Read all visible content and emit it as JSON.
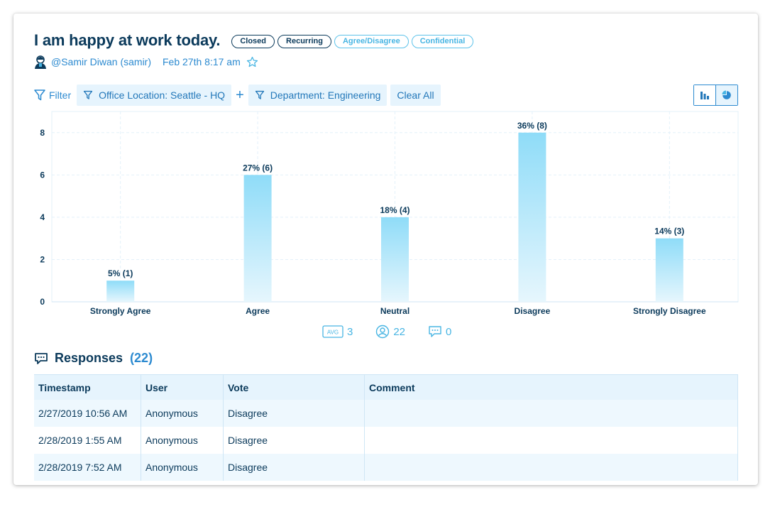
{
  "poll": {
    "title": "I am happy at work today.",
    "badges": [
      "Closed",
      "Recurring",
      "Agree/Disagree",
      "Confidential"
    ],
    "author": "@Samir Diwan (samir)",
    "date": "Feb 27th 8:17 am"
  },
  "filters": {
    "filter_label": "Filter",
    "chips": [
      "Office Location: Seattle - HQ",
      "Department: Engineering"
    ],
    "plus": "+",
    "clear_label": "Clear All"
  },
  "chart_data": {
    "type": "bar",
    "categories": [
      "Strongly Agree",
      "Agree",
      "Neutral",
      "Disagree",
      "Strongly Disagree"
    ],
    "values": [
      1,
      6,
      4,
      8,
      3
    ],
    "data_labels": [
      "5% (1)",
      "27% (6)",
      "18% (4)",
      "36% (8)",
      "14% (3)"
    ],
    "yticks": [
      0,
      2,
      4,
      6,
      8
    ],
    "ylim": [
      0,
      9
    ],
    "grid": true,
    "bar_color": "#8fdcf8"
  },
  "stats": {
    "avg_icon_label": "AVG",
    "avg": "3",
    "users": "22",
    "comments": "0"
  },
  "responses": {
    "title": "Responses",
    "count": "(22)",
    "columns": [
      "Timestamp",
      "User",
      "Vote",
      "Comment"
    ],
    "rows": [
      [
        "2/27/2019 10:56 AM",
        "Anonymous",
        "Disagree",
        ""
      ],
      [
        "2/28/2019 1:55 AM",
        "Anonymous",
        "Disagree",
        ""
      ],
      [
        "2/28/2019 7:52 AM",
        "Anonymous",
        "Disagree",
        ""
      ]
    ]
  }
}
